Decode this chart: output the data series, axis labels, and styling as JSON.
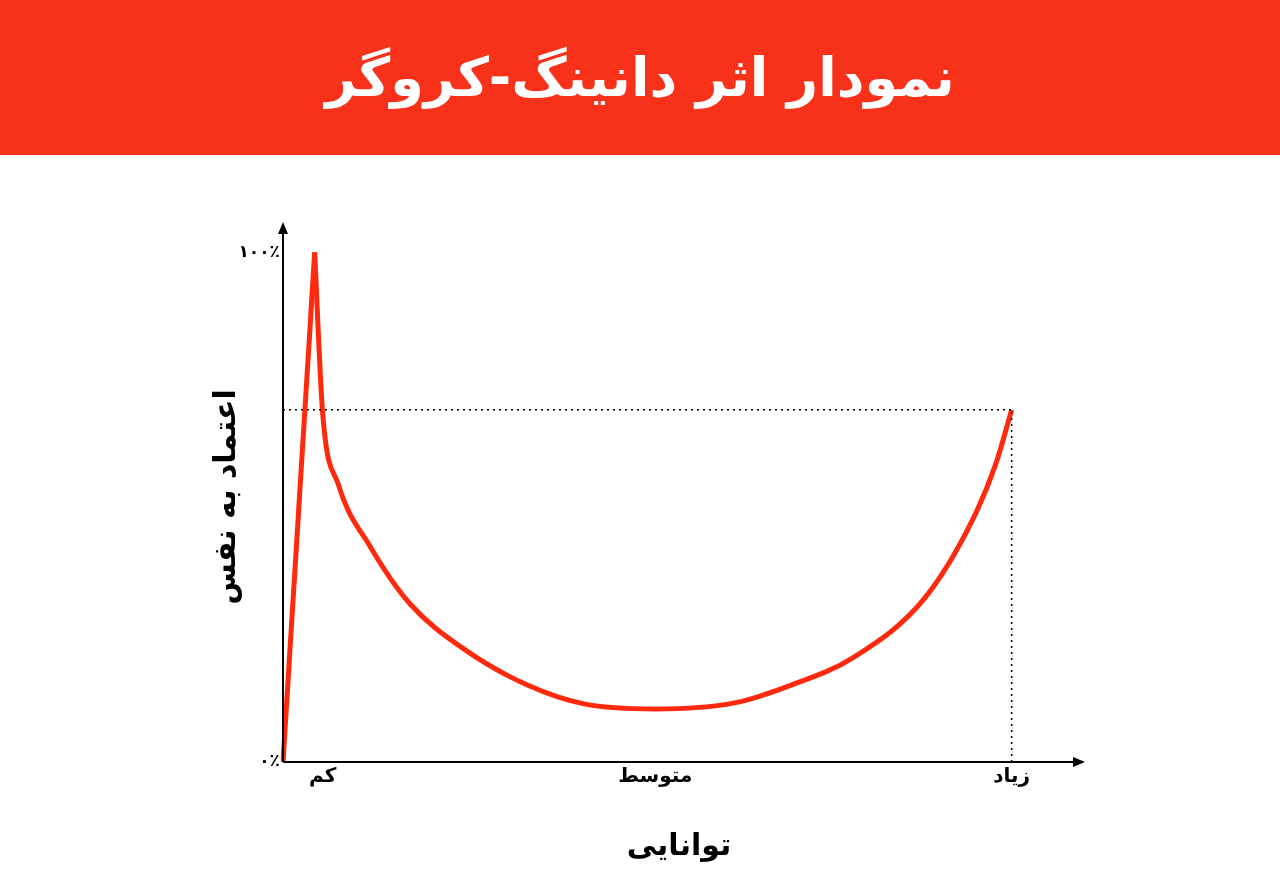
{
  "chart_data": {
    "type": "line",
    "title": "نمودار اثر دانینگ-کروگر",
    "xlabel": "توانایی",
    "ylabel": "اعتماد به نفس",
    "categories": [
      null,
      null,
      null,
      null,
      null,
      "کم",
      null,
      null,
      null,
      null,
      null,
      null,
      null,
      null,
      null,
      null,
      null,
      null,
      null,
      null,
      null,
      null,
      null,
      null,
      null,
      null,
      null,
      null,
      null,
      null,
      null,
      null,
      null,
      null,
      null,
      null,
      null,
      null,
      null,
      null,
      null,
      null,
      null,
      null,
      null,
      null,
      null,
      "متوسط",
      null,
      null,
      null,
      null,
      null,
      null,
      null,
      null,
      null,
      null,
      null,
      null,
      null,
      null,
      null,
      null,
      null,
      null,
      null,
      null,
      null,
      null,
      null,
      null,
      null,
      null,
      null,
      null,
      null,
      null,
      null,
      null,
      null,
      null,
      null,
      null,
      null,
      null,
      null,
      null,
      null,
      null,
      null,
      null,
      "زیاد",
      null,
      null,
      null,
      null,
      null,
      null,
      null,
      null
    ],
    "ylim": [
      0,
      104
    ],
    "yticks": [
      {
        "value": 0,
        "label": "۰٪"
      },
      {
        "value": 100,
        "label": "۱۰۰٪"
      }
    ],
    "marker": "none",
    "line_style": "solid",
    "series": [
      {
        "color": "#ff2a0e",
        "values": [
          0,
          null,
          null,
          null,
          100,
          null,
          null,
          null,
          null,
          null,
          null,
          null,
          null,
          null,
          null,
          null,
          null,
          null,
          null,
          null,
          null,
          null,
          null,
          null,
          null,
          null,
          null,
          null,
          null,
          null,
          null,
          null,
          null,
          null,
          null,
          null,
          null,
          null,
          null,
          null,
          null,
          null,
          null,
          null,
          null,
          null,
          null,
          null,
          null,
          null,
          null,
          null,
          null,
          null,
          null,
          null,
          null,
          null,
          null,
          null,
          null,
          null,
          null,
          null,
          null,
          null,
          null,
          null,
          null,
          null,
          null,
          null,
          null,
          null,
          null,
          null,
          null,
          null,
          null,
          null,
          null,
          null,
          null,
          null,
          null,
          null,
          null,
          null,
          null,
          null,
          null,
          null,
          null,
          null,
          null,
          null,
          null,
          null,
          null,
          null,
          null
        ]
      },
      {
        "color": "#ff2a0e",
        "values": [
          null,
          null,
          null,
          null,
          100,
          68.6,
          null,
          54.4,
          null,
          null,
          null,
          42.3,
          null,
          null,
          null,
          null,
          31.1,
          null,
          null,
          null,
          null,
          null,
          null,
          22.0,
          null,
          null,
          null,
          null,
          null,
          null,
          null,
          15.0,
          null,
          null,
          null,
          null,
          null,
          null,
          11.4,
          null,
          null,
          null,
          null,
          null,
          null,
          null,
          null,
          10.4,
          null,
          null,
          null,
          null,
          null,
          null,
          null,
          null,
          null,
          11.6,
          null,
          null,
          null,
          null,
          null,
          null,
          15.0,
          null,
          null,
          null,
          null,
          null,
          null,
          null,
          20.5,
          null,
          null,
          null,
          null,
          null,
          null,
          null,
          null,
          32.1,
          null,
          null,
          null,
          null,
          null,
          47.3,
          null,
          null,
          58.5,
          null,
          69.1,
          null,
          null,
          null,
          null,
          null,
          null,
          null,
          null
        ]
      }
    ],
    "ref_lines": [
      {
        "axis": "y",
        "value": 69.1,
        "line_style": "dotted",
        "color": "#000000"
      },
      {
        "axis": "x",
        "value": "زیاد",
        "line_style": "dotted",
        "color": "#000000"
      }
    ]
  }
}
